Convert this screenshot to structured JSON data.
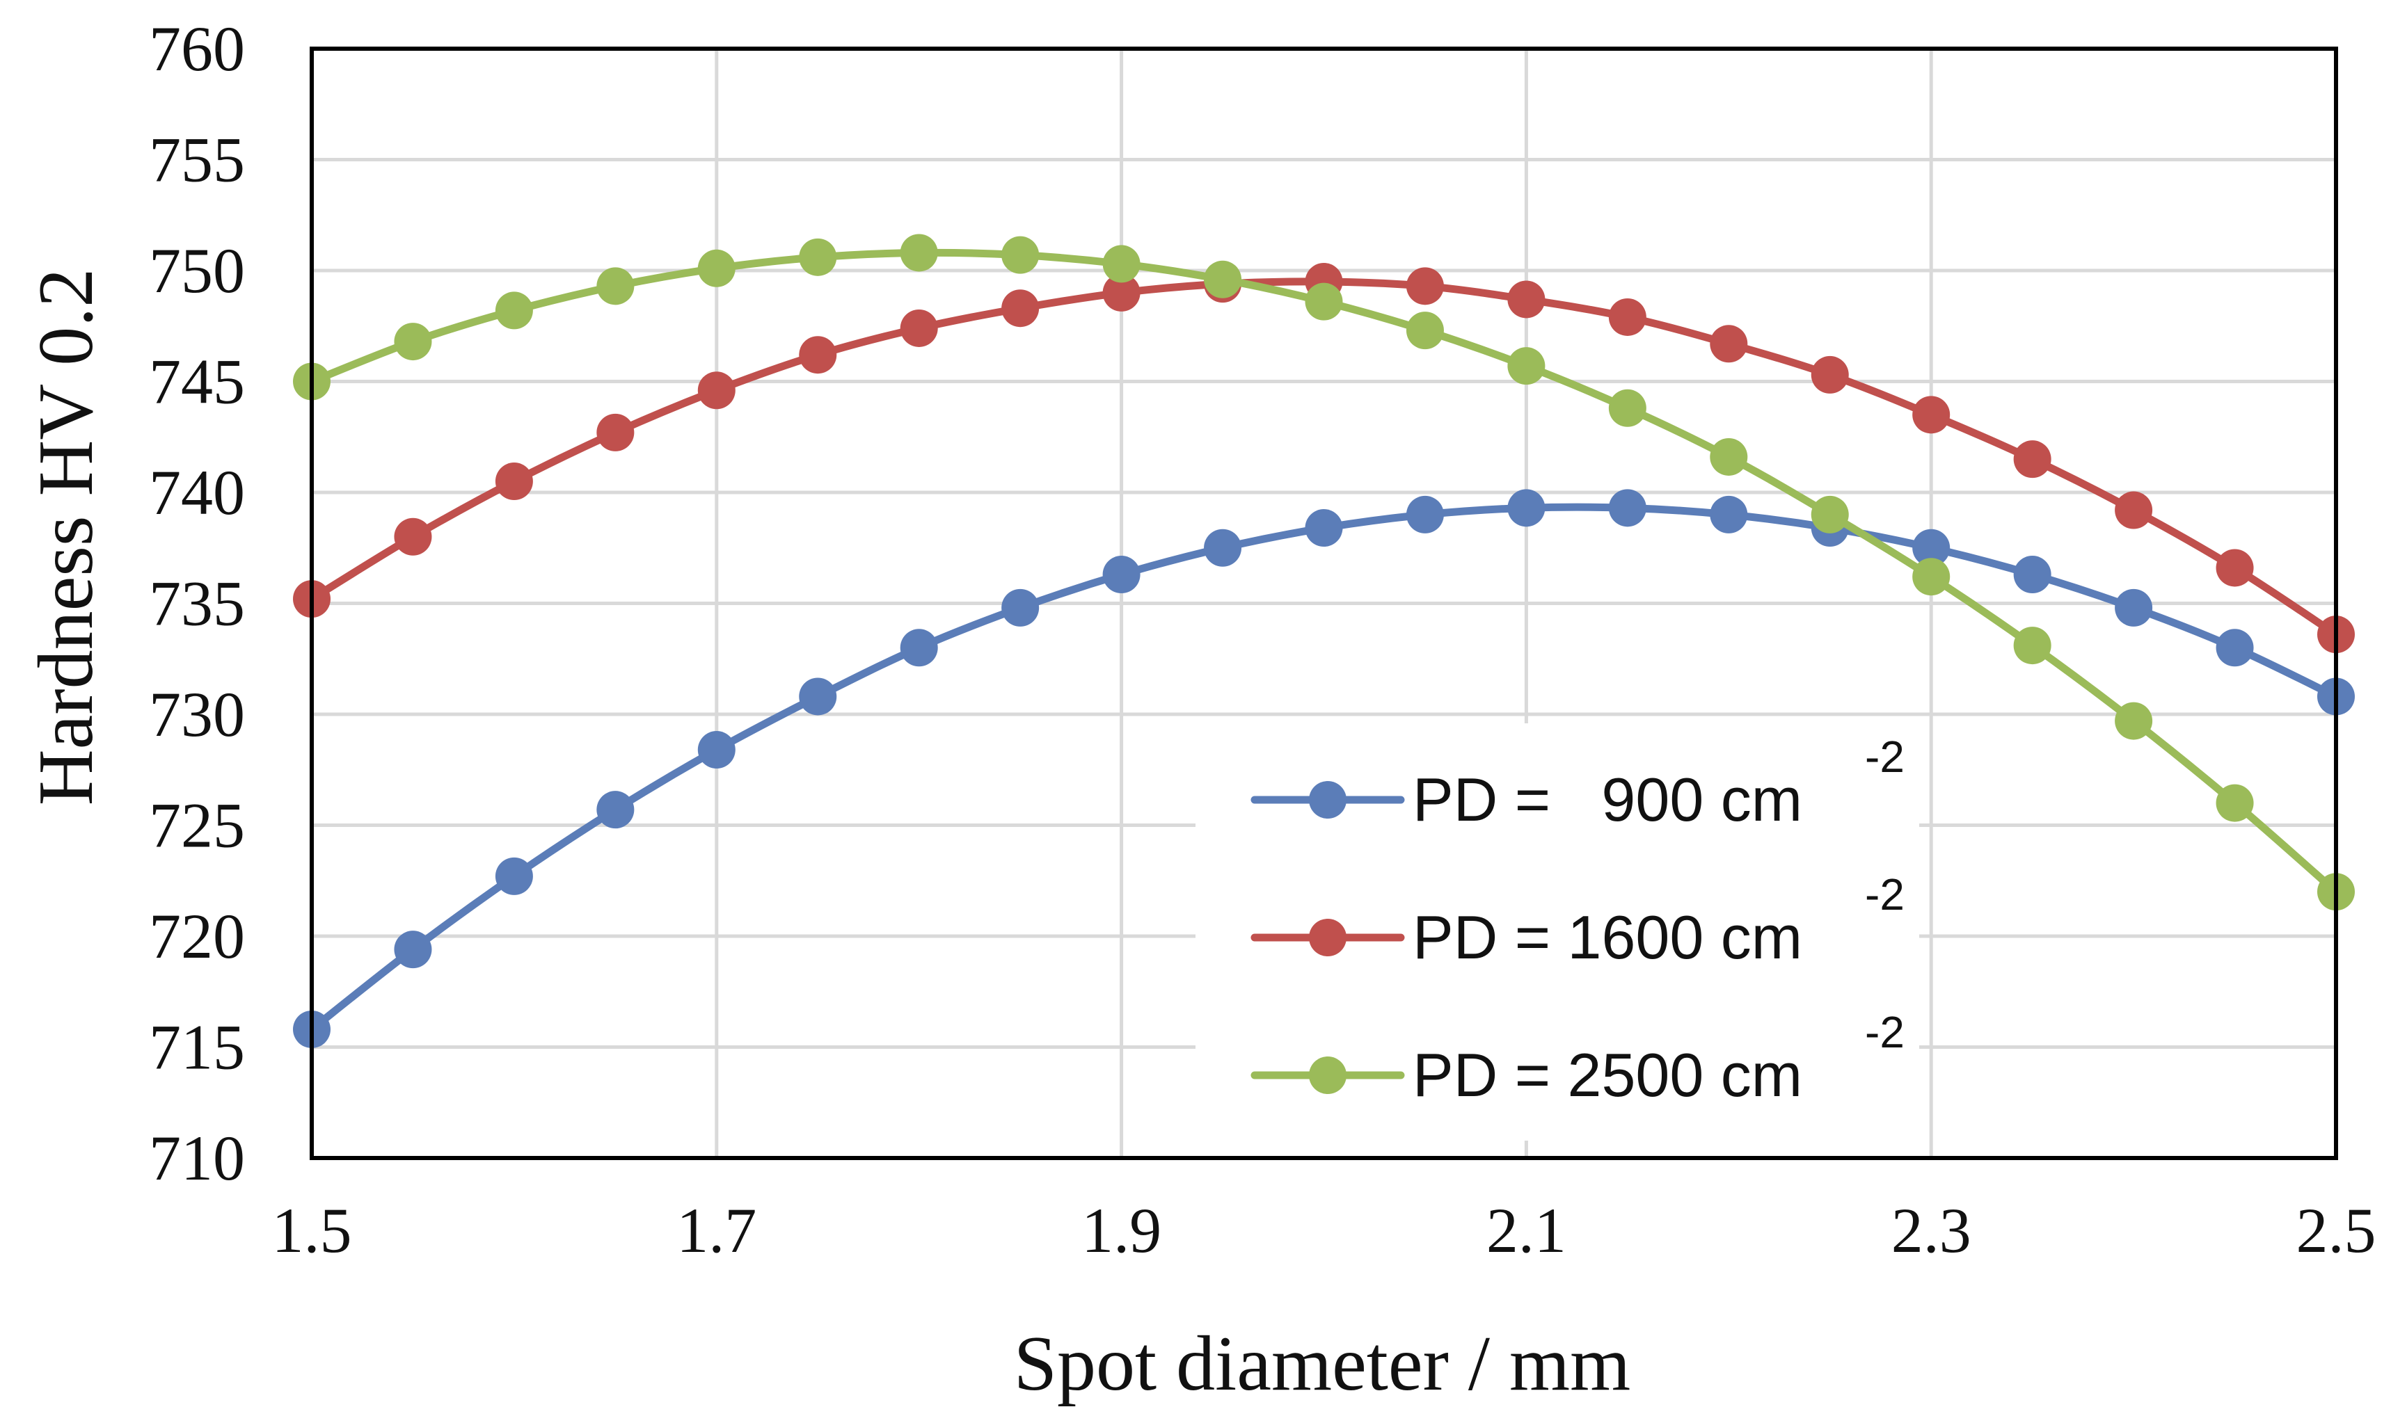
{
  "chart_data": {
    "type": "line",
    "xlabel": "Spot diameter  / mm",
    "ylabel": "Hardness  HV 0.2",
    "xlim": [
      1.5,
      2.5
    ],
    "ylim": [
      710,
      760
    ],
    "xticks": [
      "1.5",
      "1.7",
      "1.9",
      "2.1",
      "2.3",
      "2.5"
    ],
    "yticks": [
      "710",
      "715",
      "720",
      "725",
      "730",
      "735",
      "740",
      "745",
      "750",
      "755",
      "760"
    ],
    "grid": true,
    "legend_position": "bottom-right",
    "x": [
      1.5,
      1.55,
      1.6,
      1.65,
      1.7,
      1.75,
      1.8,
      1.85,
      1.9,
      1.95,
      2.0,
      2.05,
      2.1,
      2.15,
      2.2,
      2.25,
      2.3,
      2.35,
      2.4,
      2.45,
      2.5
    ],
    "series": [
      {
        "name": "PD =   900 cm",
        "superscript": "-2",
        "color": "#5B7DB8",
        "values": [
          715.8,
          719.4,
          722.7,
          725.7,
          728.4,
          730.8,
          733.0,
          734.8,
          736.3,
          737.5,
          738.4,
          739.0,
          739.3,
          739.3,
          739.0,
          738.4,
          737.5,
          736.3,
          734.8,
          733.0,
          730.8
        ]
      },
      {
        "name": "PD = 1600 cm",
        "superscript": "-2",
        "color": "#C0504D",
        "values": [
          735.2,
          738.0,
          740.5,
          742.7,
          744.6,
          746.2,
          747.4,
          748.3,
          749.0,
          749.4,
          749.5,
          749.3,
          748.7,
          747.9,
          746.7,
          745.3,
          743.5,
          741.5,
          739.2,
          736.6,
          733.6
        ]
      },
      {
        "name": "PD = 2500 cm",
        "superscript": "-2",
        "color": "#9BBB59",
        "values": [
          745.0,
          746.8,
          748.2,
          749.3,
          750.1,
          750.6,
          750.8,
          750.7,
          750.3,
          749.6,
          748.6,
          747.3,
          745.7,
          743.8,
          741.6,
          739.0,
          736.2,
          733.1,
          729.7,
          726.0,
          722.0
        ]
      }
    ]
  }
}
